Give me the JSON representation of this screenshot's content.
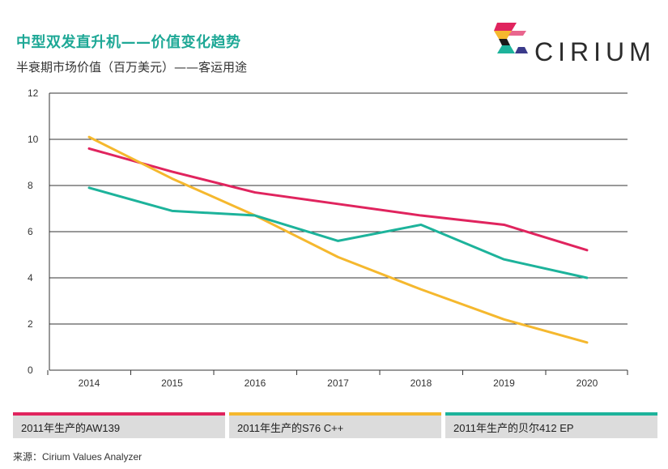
{
  "header": {
    "title": "中型双发直升机——价值变化趋势",
    "subtitle": "半衰期市场价值（百万美元）——客运用途"
  },
  "brand": {
    "name": "CIRIUM"
  },
  "colors": {
    "aw139": "#e0245e",
    "s76": "#f5b82e",
    "bell412": "#1db39b",
    "title": "#1ea896"
  },
  "chart_data": {
    "type": "line",
    "title": "中型双发直升机——价值变化趋势",
    "ylabel": "半衰期市场价值（百万美元）——客运用途",
    "xlabel": "",
    "categories": [
      "2014",
      "2015",
      "2016",
      "2017",
      "2018",
      "2019",
      "2020"
    ],
    "ylim": [
      0,
      12
    ],
    "yticks": [
      0,
      2,
      4,
      6,
      8,
      10,
      12
    ],
    "grid": true,
    "series": [
      {
        "name": "2011年生产的AW139",
        "color": "#e0245e",
        "values": [
          9.6,
          8.6,
          7.7,
          7.2,
          6.7,
          6.3,
          5.2
        ]
      },
      {
        "name": "2011年生产的S76 C++",
        "color": "#f5b82e",
        "values": [
          10.1,
          8.3,
          6.7,
          4.9,
          3.5,
          2.2,
          1.2
        ]
      },
      {
        "name": "2011年生产的贝尔412 EP",
        "color": "#1db39b",
        "values": [
          7.9,
          6.9,
          6.7,
          5.6,
          6.3,
          4.8,
          4.0
        ]
      }
    ]
  },
  "legend": {
    "items": [
      {
        "label": "2011年生产的AW139"
      },
      {
        "label": "2011年生产的S76 C++"
      },
      {
        "label": "2011年生产的贝尔412 EP"
      }
    ]
  },
  "footer": {
    "source": "来源：Cirium Values Analyzer"
  }
}
